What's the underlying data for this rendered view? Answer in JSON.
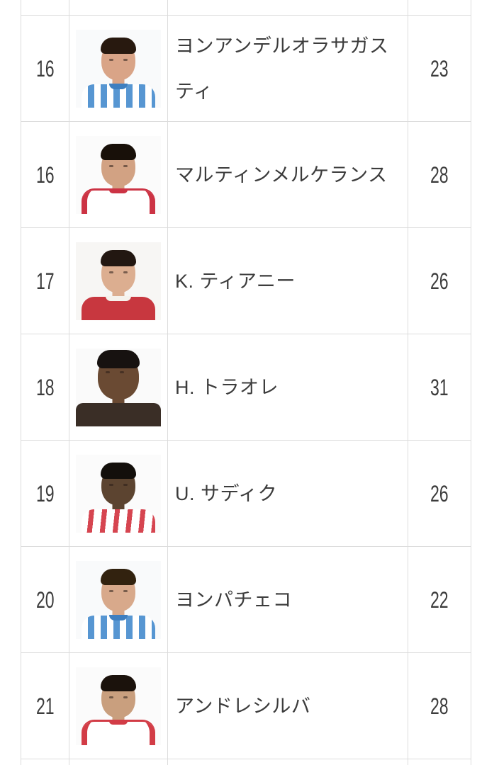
{
  "page": {
    "background": "#ffffff",
    "border_color": "#dcdcdc",
    "text_color": "#3c3c3c"
  },
  "players": [
    {
      "number": "16",
      "name": "ヨンアンデルオラサガスティ",
      "age": "23",
      "photo": {
        "desc": "player-headshot-blue-white-striped-kit",
        "skin": "#d9a487",
        "hair": "#28190f",
        "kit": "stripes-blue",
        "kit1": "#5796d2",
        "kit2": "#3f7fc0",
        "bg": "#f9fafb"
      }
    },
    {
      "number": "16",
      "name": "マルティンメルケランス",
      "age": "28",
      "photo": {
        "desc": "player-headshot-white-red-kit",
        "skin": "#d2a283",
        "hair": "#181009",
        "kit": "white-red",
        "kit1": "#cc3344",
        "kit2": "#ffffff",
        "bg": "#fbfbfb"
      }
    },
    {
      "number": "17",
      "name": "K. ティアニー",
      "age": "26",
      "photo": {
        "desc": "player-headshot-red-kit",
        "skin": "#dcae90",
        "hair": "#221711",
        "kit": "solid-red",
        "kit1": "#c8373f",
        "kit2": "#f5f2ec",
        "bg": "#f7f6f4"
      }
    },
    {
      "number": "18",
      "name": "H. トラオレ",
      "age": "31",
      "photo": {
        "desc": "player-headshot-closeup-dark-top",
        "skin": "#6a4a33",
        "hair": "#171210",
        "kit": "closeup",
        "kit1": "#3a2e26",
        "kit2": "#3a2e26",
        "bg": "#fafafa"
      }
    },
    {
      "number": "19",
      "name": "U. サディク",
      "age": "26",
      "photo": {
        "desc": "player-headshot-white-red-striped-kit",
        "skin": "#5c4430",
        "hair": "#130f0b",
        "kit": "stripes-red",
        "kit1": "#d64550",
        "kit2": "#ffffff",
        "bg": "#fbfbfb"
      }
    },
    {
      "number": "20",
      "name": "ヨンパチェコ",
      "age": "22",
      "photo": {
        "desc": "player-headshot-blue-white-striped-kit",
        "skin": "#d8a98b",
        "hair": "#32220f",
        "kit": "stripes-blue",
        "kit1": "#5796d2",
        "kit2": "#3f7fc0",
        "bg": "#f9fafb"
      }
    },
    {
      "number": "21",
      "name": "アンドレシルバ",
      "age": "28",
      "photo": {
        "desc": "player-headshot-white-red-kit",
        "skin": "#c99f7e",
        "hair": "#1b120c",
        "kit": "white-red",
        "kit1": "#d23c46",
        "kit2": "#ffffff",
        "bg": "#fbfbfb"
      }
    }
  ]
}
